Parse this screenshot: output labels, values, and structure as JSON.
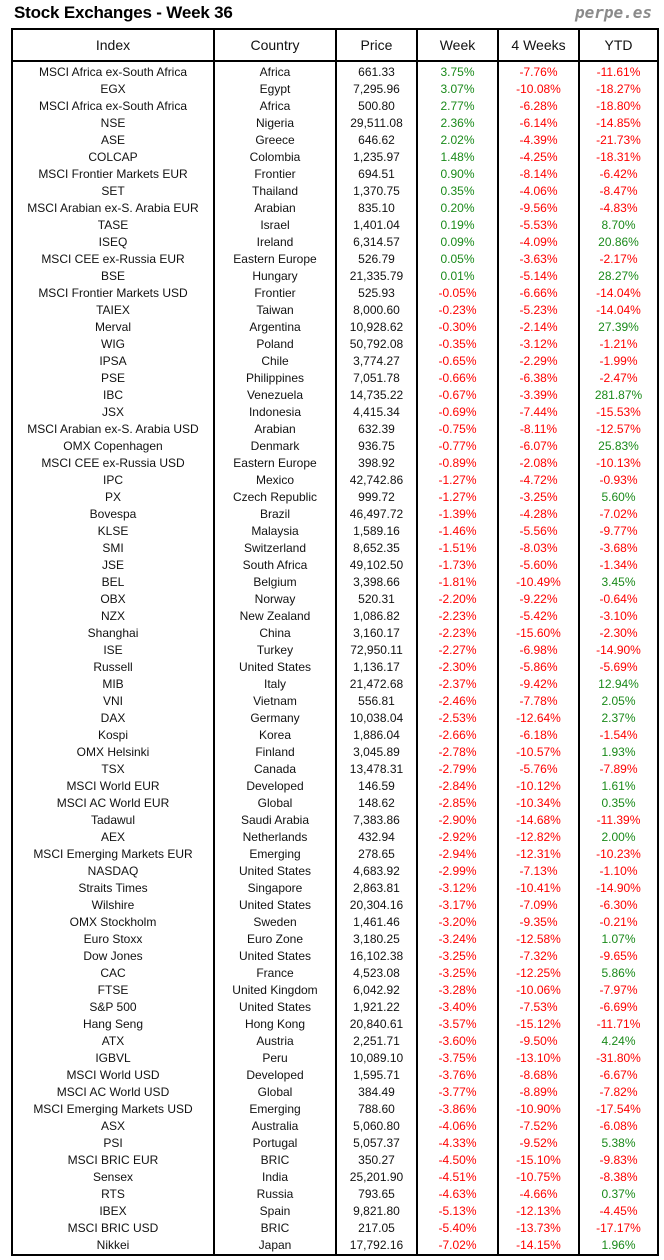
{
  "title": "Stock Exchanges - Week 36",
  "brand": "perpe.es",
  "colors": {
    "positive": "#1a8a1a",
    "negative": "#ff0000"
  },
  "columns": [
    "Index",
    "Country",
    "Price",
    "Week",
    "4 Weeks",
    "YTD"
  ],
  "rows": [
    [
      "MSCI Africa ex-South Africa",
      "Africa",
      "661.33",
      "3.75%",
      "-7.76%",
      "-11.61%"
    ],
    [
      "EGX",
      "Egypt",
      "7,295.96",
      "3.07%",
      "-10.08%",
      "-18.27%"
    ],
    [
      "MSCI Africa ex-South Africa",
      "Africa",
      "500.80",
      "2.77%",
      "-6.28%",
      "-18.80%"
    ],
    [
      "NSE",
      "Nigeria",
      "29,511.08",
      "2.36%",
      "-6.14%",
      "-14.85%"
    ],
    [
      "ASE",
      "Greece",
      "646.62",
      "2.02%",
      "-4.39%",
      "-21.73%"
    ],
    [
      "COLCAP",
      "Colombia",
      "1,235.97",
      "1.48%",
      "-4.25%",
      "-18.31%"
    ],
    [
      "MSCI Frontier Markets EUR",
      "Frontier",
      "694.51",
      "0.90%",
      "-8.14%",
      "-6.42%"
    ],
    [
      "SET",
      "Thailand",
      "1,370.75",
      "0.35%",
      "-4.06%",
      "-8.47%"
    ],
    [
      "MSCI Arabian ex-S. Arabia EUR",
      "Arabian",
      "835.10",
      "0.20%",
      "-9.56%",
      "-4.83%"
    ],
    [
      "TASE",
      "Israel",
      "1,401.04",
      "0.19%",
      "-5.53%",
      "8.70%"
    ],
    [
      "ISEQ",
      "Ireland",
      "6,314.57",
      "0.09%",
      "-4.09%",
      "20.86%"
    ],
    [
      "MSCI CEE ex-Russia EUR",
      "Eastern Europe",
      "526.79",
      "0.05%",
      "-3.63%",
      "-2.17%"
    ],
    [
      "BSE",
      "Hungary",
      "21,335.79",
      "0.01%",
      "-5.14%",
      "28.27%"
    ],
    [
      "MSCI Frontier Markets USD",
      "Frontier",
      "525.93",
      "-0.05%",
      "-6.66%",
      "-14.04%"
    ],
    [
      "TAIEX",
      "Taiwan",
      "8,000.60",
      "-0.23%",
      "-5.23%",
      "-14.04%"
    ],
    [
      "Merval",
      "Argentina",
      "10,928.62",
      "-0.30%",
      "-2.14%",
      "27.39%"
    ],
    [
      "WIG",
      "Poland",
      "50,792.08",
      "-0.35%",
      "-3.12%",
      "-1.21%"
    ],
    [
      "IPSA",
      "Chile",
      "3,774.27",
      "-0.65%",
      "-2.29%",
      "-1.99%"
    ],
    [
      "PSE",
      "Philippines",
      "7,051.78",
      "-0.66%",
      "-6.38%",
      "-2.47%"
    ],
    [
      "IBC",
      "Venezuela",
      "14,735.22",
      "-0.67%",
      "-3.39%",
      "281.87%"
    ],
    [
      "JSX",
      "Indonesia",
      "4,415.34",
      "-0.69%",
      "-7.44%",
      "-15.53%"
    ],
    [
      "MSCI Arabian ex-S. Arabia USD",
      "Arabian",
      "632.39",
      "-0.75%",
      "-8.11%",
      "-12.57%"
    ],
    [
      "OMX Copenhagen",
      "Denmark",
      "936.75",
      "-0.77%",
      "-6.07%",
      "25.83%"
    ],
    [
      "MSCI CEE ex-Russia USD",
      "Eastern Europe",
      "398.92",
      "-0.89%",
      "-2.08%",
      "-10.13%"
    ],
    [
      "IPC",
      "Mexico",
      "42,742.86",
      "-1.27%",
      "-4.72%",
      "-0.93%"
    ],
    [
      "PX",
      "Czech Republic",
      "999.72",
      "-1.27%",
      "-3.25%",
      "5.60%"
    ],
    [
      "Bovespa",
      "Brazil",
      "46,497.72",
      "-1.39%",
      "-4.28%",
      "-7.02%"
    ],
    [
      "KLSE",
      "Malaysia",
      "1,589.16",
      "-1.46%",
      "-5.56%",
      "-9.77%"
    ],
    [
      "SMI",
      "Switzerland",
      "8,652.35",
      "-1.51%",
      "-8.03%",
      "-3.68%"
    ],
    [
      "JSE",
      "South Africa",
      "49,102.50",
      "-1.73%",
      "-5.60%",
      "-1.34%"
    ],
    [
      "BEL",
      "Belgium",
      "3,398.66",
      "-1.81%",
      "-10.49%",
      "3.45%"
    ],
    [
      "OBX",
      "Norway",
      "520.31",
      "-2.20%",
      "-9.22%",
      "-0.64%"
    ],
    [
      "NZX",
      "New Zealand",
      "1,086.82",
      "-2.23%",
      "-5.42%",
      "-3.10%"
    ],
    [
      "Shanghai",
      "China",
      "3,160.17",
      "-2.23%",
      "-15.60%",
      "-2.30%"
    ],
    [
      "ISE",
      "Turkey",
      "72,950.11",
      "-2.27%",
      "-6.98%",
      "-14.90%"
    ],
    [
      "Russell",
      "United States",
      "1,136.17",
      "-2.30%",
      "-5.86%",
      "-5.69%"
    ],
    [
      "MIB",
      "Italy",
      "21,472.68",
      "-2.37%",
      "-9.42%",
      "12.94%"
    ],
    [
      "VNI",
      "Vietnam",
      "556.81",
      "-2.46%",
      "-7.78%",
      "2.05%"
    ],
    [
      "DAX",
      "Germany",
      "10,038.04",
      "-2.53%",
      "-12.64%",
      "2.37%"
    ],
    [
      "Kospi",
      "Korea",
      "1,886.04",
      "-2.66%",
      "-6.18%",
      "-1.54%"
    ],
    [
      "OMX Helsinki",
      "Finland",
      "3,045.89",
      "-2.78%",
      "-10.57%",
      "1.93%"
    ],
    [
      "TSX",
      "Canada",
      "13,478.31",
      "-2.79%",
      "-5.76%",
      "-7.89%"
    ],
    [
      "MSCI World EUR",
      "Developed",
      "146.59",
      "-2.84%",
      "-10.12%",
      "1.61%"
    ],
    [
      "MSCI AC World EUR",
      "Global",
      "148.62",
      "-2.85%",
      "-10.34%",
      "0.35%"
    ],
    [
      "Tadawul",
      "Saudi Arabia",
      "7,383.86",
      "-2.90%",
      "-14.68%",
      "-11.39%"
    ],
    [
      "AEX",
      "Netherlands",
      "432.94",
      "-2.92%",
      "-12.82%",
      "2.00%"
    ],
    [
      "MSCI Emerging Markets EUR",
      "Emerging",
      "278.65",
      "-2.94%",
      "-12.31%",
      "-10.23%"
    ],
    [
      "NASDAQ",
      "United States",
      "4,683.92",
      "-2.99%",
      "-7.13%",
      "-1.10%"
    ],
    [
      "Straits Times",
      "Singapore",
      "2,863.81",
      "-3.12%",
      "-10.41%",
      "-14.90%"
    ],
    [
      "Wilshire",
      "United States",
      "20,304.16",
      "-3.17%",
      "-7.09%",
      "-6.30%"
    ],
    [
      "OMX Stockholm",
      "Sweden",
      "1,461.46",
      "-3.20%",
      "-9.35%",
      "-0.21%"
    ],
    [
      "Euro Stoxx",
      "Euro Zone",
      "3,180.25",
      "-3.24%",
      "-12.58%",
      "1.07%"
    ],
    [
      "Dow Jones",
      "United States",
      "16,102.38",
      "-3.25%",
      "-7.32%",
      "-9.65%"
    ],
    [
      "CAC",
      "France",
      "4,523.08",
      "-3.25%",
      "-12.25%",
      "5.86%"
    ],
    [
      "FTSE",
      "United Kingdom",
      "6,042.92",
      "-3.28%",
      "-10.06%",
      "-7.97%"
    ],
    [
      "S&P 500",
      "United States",
      "1,921.22",
      "-3.40%",
      "-7.53%",
      "-6.69%"
    ],
    [
      "Hang Seng",
      "Hong Kong",
      "20,840.61",
      "-3.57%",
      "-15.12%",
      "-11.71%"
    ],
    [
      "ATX",
      "Austria",
      "2,251.71",
      "-3.60%",
      "-9.50%",
      "4.24%"
    ],
    [
      "IGBVL",
      "Peru",
      "10,089.10",
      "-3.75%",
      "-13.10%",
      "-31.80%"
    ],
    [
      "MSCI World USD",
      "Developed",
      "1,595.71",
      "-3.76%",
      "-8.68%",
      "-6.67%"
    ],
    [
      "MSCI AC World USD",
      "Global",
      "384.49",
      "-3.77%",
      "-8.89%",
      "-7.82%"
    ],
    [
      "MSCI Emerging Markets USD",
      "Emerging",
      "788.60",
      "-3.86%",
      "-10.90%",
      "-17.54%"
    ],
    [
      "ASX",
      "Australia",
      "5,060.80",
      "-4.06%",
      "-7.52%",
      "-6.08%"
    ],
    [
      "PSI",
      "Portugal",
      "5,057.37",
      "-4.33%",
      "-9.52%",
      "5.38%"
    ],
    [
      "MSCI BRIC EUR",
      "BRIC",
      "350.27",
      "-4.50%",
      "-15.10%",
      "-9.83%"
    ],
    [
      "Sensex",
      "India",
      "25,201.90",
      "-4.51%",
      "-10.75%",
      "-8.38%"
    ],
    [
      "RTS",
      "Russia",
      "793.65",
      "-4.63%",
      "-4.66%",
      "0.37%"
    ],
    [
      "IBEX",
      "Spain",
      "9,821.80",
      "-5.13%",
      "-12.13%",
      "-4.45%"
    ],
    [
      "MSCI BRIC USD",
      "BRIC",
      "217.05",
      "-5.40%",
      "-13.73%",
      "-17.17%"
    ],
    [
      "Nikkei",
      "Japan",
      "17,792.16",
      "-7.02%",
      "-14.15%",
      "1.96%"
    ]
  ]
}
